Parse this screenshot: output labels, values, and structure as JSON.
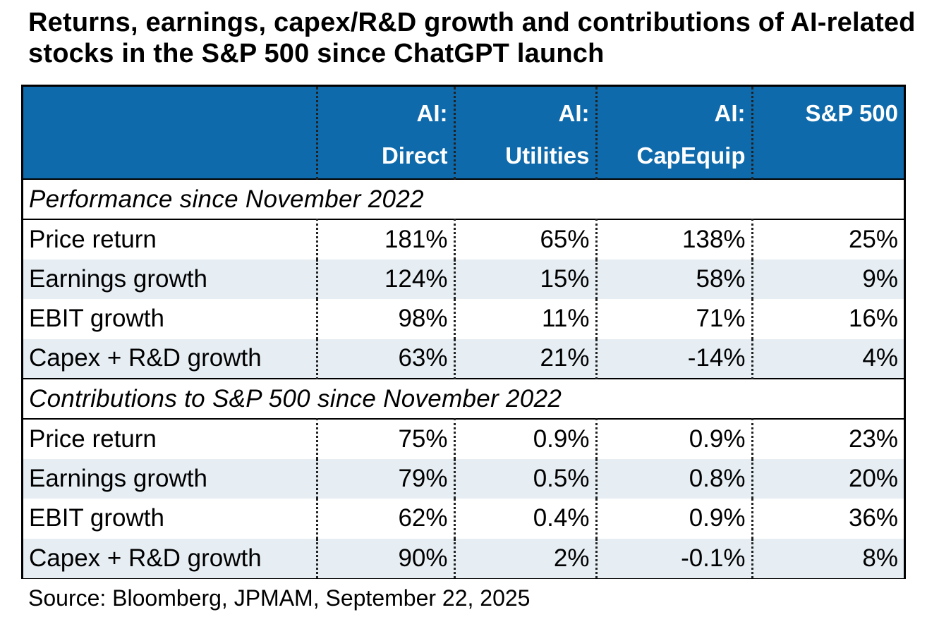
{
  "title": "Returns, earnings, capex/R&D growth and contributions of AI-related stocks in the S&P 500 since ChatGPT launch",
  "source": "Source: Bloomberg, JPMAM, September 22, 2025",
  "colors": {
    "header_bg": "#0e6aab",
    "header_text": "#ffffff",
    "row_shade": "#e6eef4"
  },
  "chart_data": {
    "type": "table",
    "title": "Returns, earnings, capex/R&D growth and contributions of AI-related stocks in the S&P 500 since ChatGPT launch",
    "columns": [
      {
        "line1": "AI:",
        "line2": "Direct"
      },
      {
        "line1": "AI:",
        "line2": "Utilities"
      },
      {
        "line1": "AI:",
        "line2": "CapEquip"
      },
      {
        "line1": "S&P 500",
        "line2": ""
      }
    ],
    "sections": [
      {
        "title": "Performance since November 2022",
        "rows": [
          {
            "label": "Price return",
            "values": [
              "181%",
              "65%",
              "138%",
              "25%"
            ]
          },
          {
            "label": "Earnings growth",
            "values": [
              "124%",
              "15%",
              "58%",
              "9%"
            ]
          },
          {
            "label": "EBIT growth",
            "values": [
              "98%",
              "11%",
              "71%",
              "16%"
            ]
          },
          {
            "label": "Capex + R&D growth",
            "values": [
              "63%",
              "21%",
              "-14%",
              "4%"
            ]
          }
        ]
      },
      {
        "title": "Contributions to S&P 500 since November 2022",
        "rows": [
          {
            "label": "Price return",
            "values": [
              "75%",
              "0.9%",
              "0.9%",
              "23%"
            ]
          },
          {
            "label": "Earnings growth",
            "values": [
              "79%",
              "0.5%",
              "0.8%",
              "20%"
            ]
          },
          {
            "label": "EBIT growth",
            "values": [
              "62%",
              "0.4%",
              "0.9%",
              "36%"
            ]
          },
          {
            "label": "Capex + R&D growth",
            "values": [
              "90%",
              "2%",
              "-0.1%",
              "8%"
            ]
          }
        ]
      }
    ]
  }
}
